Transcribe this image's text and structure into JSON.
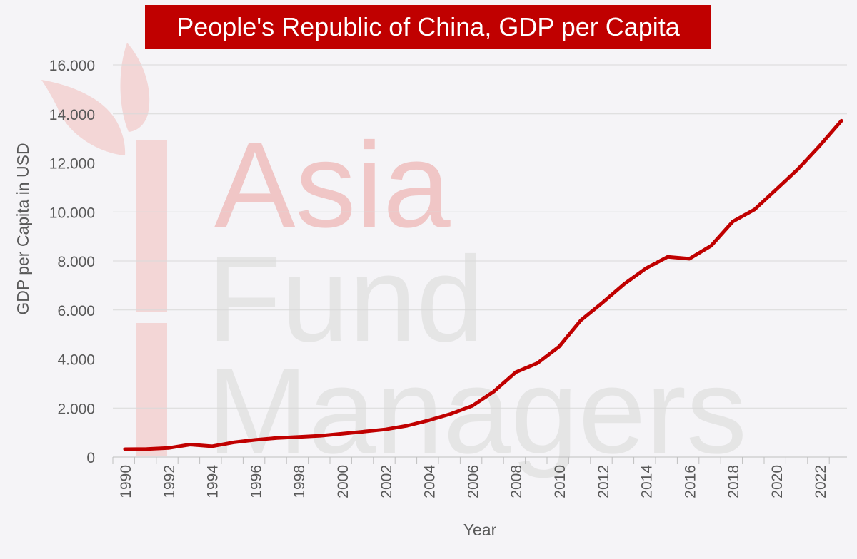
{
  "chart_data": {
    "type": "line",
    "title": "People's Republic of China, GDP per Capita",
    "xlabel": "Year",
    "ylabel": "GDP per Capita in USD",
    "xlim": [
      1990,
      2023
    ],
    "ylim": [
      0,
      16000
    ],
    "yticks": [
      0,
      2000,
      4000,
      6000,
      8000,
      10000,
      12000,
      14000,
      16000
    ],
    "ytick_labels": [
      "0",
      "2.000",
      "4.000",
      "6.000",
      "8.000",
      "10.000",
      "12.000",
      "14.000",
      "16.000"
    ],
    "xticks": [
      "1990",
      "1992",
      "1994",
      "1996",
      "1998",
      "2000",
      "2002",
      "2004",
      "2006",
      "2008",
      "2010",
      "2012",
      "2014",
      "2016",
      "2018",
      "2020",
      "2022"
    ],
    "grid": "horizontal",
    "legend": "none",
    "line_color": "#c00000",
    "x": [
      1990,
      1991,
      1992,
      1993,
      1994,
      1995,
      1996,
      1997,
      1998,
      1999,
      2000,
      2001,
      2002,
      2003,
      2004,
      2005,
      2006,
      2007,
      2008,
      2009,
      2010,
      2011,
      2012,
      2013,
      2014,
      2015,
      2016,
      2017,
      2018,
      2019,
      2020,
      2021,
      2022,
      2023
    ],
    "series": [
      {
        "values": [
          320,
          330,
          370,
          510,
          440,
          600,
          700,
          780,
          820,
          870,
          950,
          1040,
          1130,
          1280,
          1500,
          1760,
          2090,
          2680,
          3460,
          3830,
          4510,
          5580,
          6300,
          7060,
          7700,
          8170,
          8090,
          8620,
          9610,
          10100,
          10920,
          11750,
          12700,
          13720
        ]
      }
    ]
  },
  "watermark": {
    "line1": "Asia",
    "line2": "Fund",
    "line3": "Managers",
    "accent_color": "#f0c6c6",
    "text_color": "#e3e3e3"
  }
}
